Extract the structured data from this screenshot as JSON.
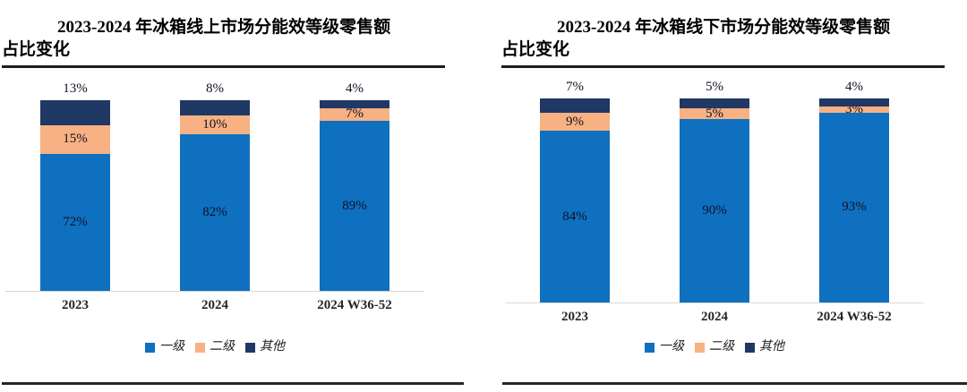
{
  "colors": {
    "level1": "#0F70C0",
    "level2": "#F8B183",
    "other": "#1F3864",
    "axis_line": "#D9D9D9",
    "rule_line": "#262626"
  },
  "chart_data": [
    {
      "type": "bar",
      "subtype": "stacked-100-percent",
      "title": "2023-2024 年冰箱线上市场分能效等级零售额占比变化",
      "title_lines": [
        "2023-2024 年冰箱线上市场分能效等级零售额",
        "占比变化"
      ],
      "categories": [
        "2023",
        "2024",
        "2024 W36-52"
      ],
      "series": [
        {
          "name": "一级",
          "color": "#0F70C0",
          "values": [
            72,
            82,
            89
          ],
          "label_position": "inside"
        },
        {
          "name": "二级",
          "color": "#F8B183",
          "values": [
            15,
            10,
            7
          ],
          "label_position": "inside"
        },
        {
          "name": "其他",
          "color": "#1F3864",
          "values": [
            13,
            8,
            4
          ],
          "label_position": "above"
        }
      ],
      "unit": "%",
      "ylim": [
        0,
        100
      ],
      "grid": "off",
      "legend_position": "bottom"
    },
    {
      "type": "bar",
      "subtype": "stacked-100-percent",
      "title": "2023-2024 年冰箱线下市场分能效等级零售额占比变化",
      "title_lines": [
        "2023-2024 年冰箱线下市场分能效等级零售额",
        "占比变化"
      ],
      "categories": [
        "2023",
        "2024",
        "2024 W36-52"
      ],
      "series": [
        {
          "name": "一级",
          "color": "#0F70C0",
          "values": [
            84,
            90,
            93
          ],
          "label_position": "inside"
        },
        {
          "name": "二级",
          "color": "#F8B183",
          "values": [
            9,
            5,
            3
          ],
          "label_position": "inside"
        },
        {
          "name": "其他",
          "color": "#1F3864",
          "values": [
            7,
            5,
            4
          ],
          "label_position": "above"
        }
      ],
      "unit": "%",
      "ylim": [
        0,
        100
      ],
      "grid": "off",
      "legend_position": "bottom"
    }
  ]
}
